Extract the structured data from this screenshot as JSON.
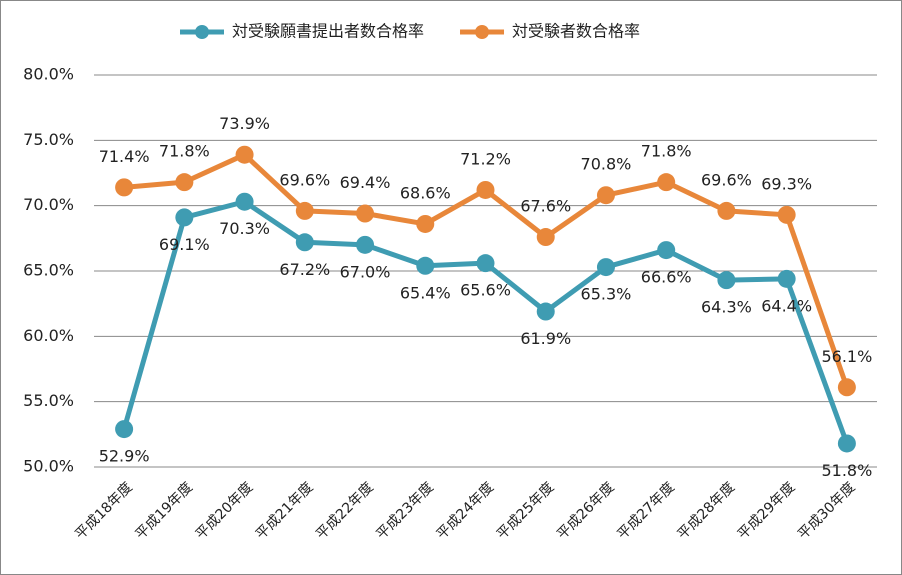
{
  "chart_data": {
    "type": "line",
    "categories": [
      "平成18年度",
      "平成19年度",
      "平成20年度",
      "平成21年度",
      "平成22年度",
      "平成23年度",
      "平成24年度",
      "平成25年度",
      "平成26年度",
      "平成27年度",
      "平成28年度",
      "平成29年度",
      "平成30年度"
    ],
    "series": [
      {
        "name": "対受験願書提出者数合格率",
        "color": "#3f9cb2",
        "values": [
          52.9,
          69.1,
          70.3,
          67.2,
          67.0,
          65.4,
          65.6,
          61.9,
          65.3,
          66.6,
          64.3,
          64.4,
          51.8
        ],
        "value_labels": [
          "52.9%",
          "69.1%",
          "70.3%",
          "67.2%",
          "67.0%",
          "65.4%",
          "65.6%",
          "61.9%",
          "65.3%",
          "66.6%",
          "64.3%",
          "64.4%",
          "51.8%"
        ]
      },
      {
        "name": "対受験者数合格率",
        "color": "#e8873a",
        "values": [
          71.4,
          71.8,
          73.9,
          69.6,
          69.4,
          68.6,
          71.2,
          67.6,
          70.8,
          71.8,
          69.6,
          69.3,
          56.1
        ],
        "value_labels": [
          "71.4%",
          "71.8%",
          "73.9%",
          "69.6%",
          "69.4%",
          "68.6%",
          "71.2%",
          "67.6%",
          "70.8%",
          "71.8%",
          "69.6%",
          "69.3%",
          "56.1%"
        ]
      }
    ],
    "ylim": [
      50,
      80
    ],
    "yticks": [
      {
        "value": 50,
        "label": "50.0%"
      },
      {
        "value": 55,
        "label": "55.0%"
      },
      {
        "value": 60,
        "label": "60.0%"
      },
      {
        "value": 65,
        "label": "65.0%"
      },
      {
        "value": 70,
        "label": "70.0%"
      },
      {
        "value": 75,
        "label": "75.0%"
      },
      {
        "value": 80,
        "label": "80.0%"
      }
    ],
    "grid": true,
    "legend": "top"
  }
}
